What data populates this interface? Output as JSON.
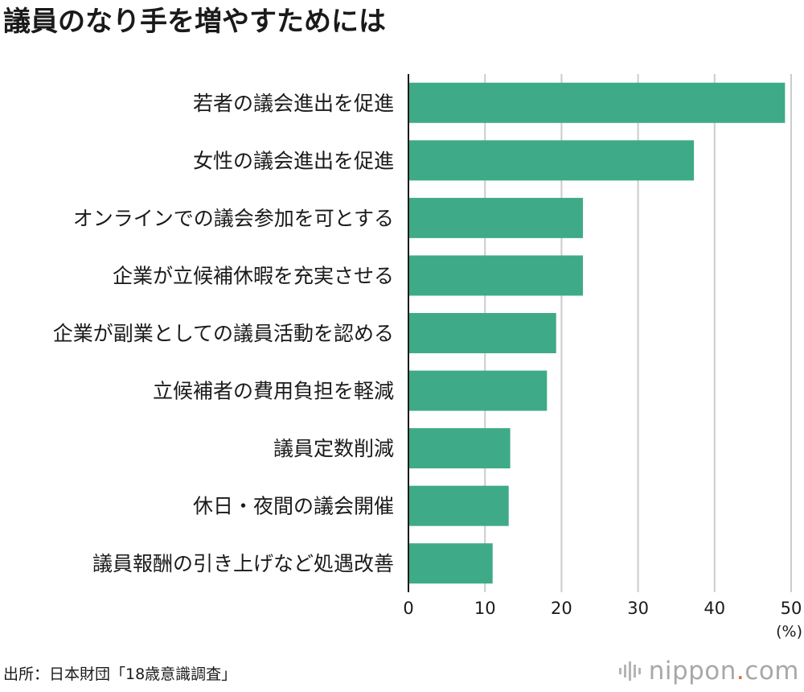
{
  "chart_data": {
    "type": "bar",
    "orientation": "horizontal",
    "title": "議員のなり手を増やすためには",
    "categories": [
      "若者の議会進出を促進",
      "女性の議会進出を促進",
      "オンラインでの議会参加を可とする",
      "企業が立候補休暇を充実させる",
      "企業が副業としての議員活動を認める",
      "立候補者の費用負担を軽減",
      "議員定数削減",
      "休日・夜間の議会開催",
      "議員報酬の引き上げなど処遇改善"
    ],
    "values": [
      49.2,
      37.3,
      22.8,
      22.8,
      19.3,
      18.1,
      13.3,
      13.1,
      11.0
    ],
    "xlim": [
      0,
      50
    ],
    "xticks": [
      "0",
      "10",
      "20",
      "30",
      "40",
      "50"
    ],
    "xlabel": "(%)",
    "grid": true,
    "bar_color": "#3faa88",
    "grid_color": "#cccccc"
  },
  "source": "出所：日本財団「18歳意識調査」",
  "brand": {
    "name": "nippon",
    "dot": ".",
    "suffix": "com",
    "accent_color": "#e8613a"
  }
}
